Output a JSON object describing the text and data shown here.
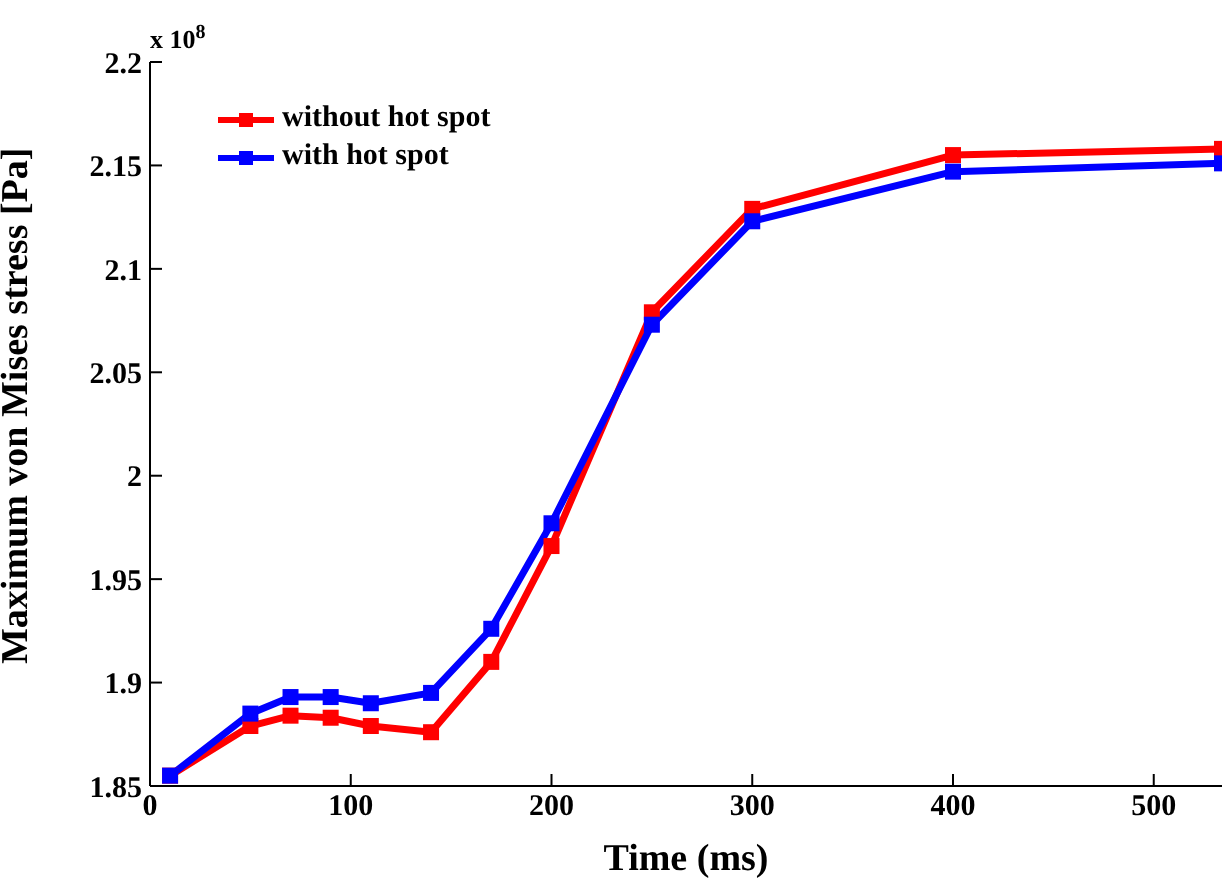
{
  "chart_data": {
    "type": "line",
    "xlabel": "Time (ms)",
    "ylabel": "Maximum von Mises stress [Pa]",
    "annotations": [
      "x 10$^{8}$"
    ],
    "x": [
      10,
      50,
      70,
      90,
      110,
      140,
      170,
      200,
      250,
      300,
      400,
      534
    ],
    "series": [
      {
        "name": "without hot spot",
        "color": "#ff0000",
        "values": [
          1.855,
          1.879,
          1.884,
          1.883,
          1.879,
          1.876,
          1.91,
          1.966,
          2.079,
          2.129,
          2.155,
          2.158
        ]
      },
      {
        "name": "with hot spot",
        "color": "#0000ff",
        "values": [
          1.855,
          1.885,
          1.893,
          1.893,
          1.89,
          1.895,
          1.926,
          1.977,
          2.073,
          2.123,
          2.147,
          2.151
        ]
      }
    ],
    "xlim": [
      0,
      534
    ],
    "xticks": [
      0,
      100,
      200,
      300,
      400,
      500
    ],
    "ylim": [
      1.85,
      2.2
    ],
    "yticks": [
      1.85,
      1.9,
      1.95,
      2,
      2.05,
      2.1,
      2.15,
      2.2
    ],
    "grid": false,
    "legend": "top left",
    "marker": "square",
    "line_style": "solid"
  }
}
